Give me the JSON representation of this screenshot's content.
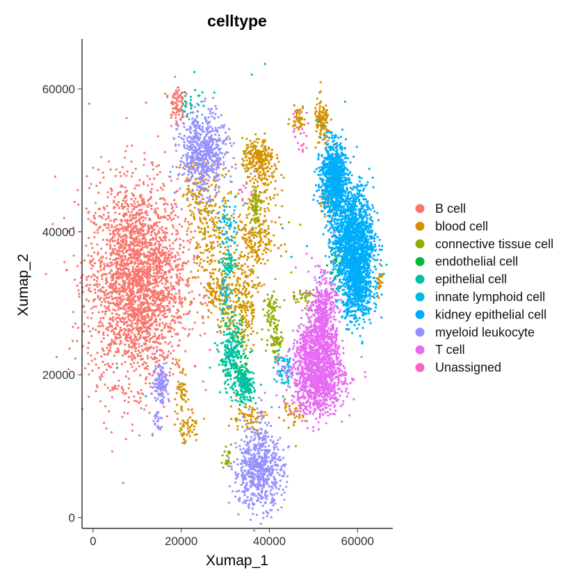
{
  "chart_data": {
    "type": "scatter",
    "title": "celltype",
    "xlabel": "Xumap_1",
    "ylabel": "Xumap_2",
    "xlim": [
      -2500,
      68000
    ],
    "ylim": [
      -1500,
      67000
    ],
    "x_ticks": [
      0,
      20000,
      40000,
      60000
    ],
    "x_tick_labels": [
      "0",
      "20000",
      "40000",
      "60000"
    ],
    "y_ticks": [
      0,
      20000,
      40000,
      60000
    ],
    "y_tick_labels": [
      "0",
      "20000",
      "40000",
      "60000"
    ],
    "grid": false,
    "legend_position": "right",
    "series": [
      {
        "name": "B cell",
        "color": "#F8766D",
        "clusters": [
          [
            10000,
            33000,
            5500,
            7000,
            2600
          ],
          [
            19000,
            58000,
            900,
            1500,
            80
          ]
        ],
        "points": [
          [
            3500,
            41000
          ],
          [
            1500,
            30500
          ],
          [
            15000,
            22000
          ],
          [
            20000,
            30000
          ]
        ]
      },
      {
        "name": "blood cell",
        "color": "#D39200",
        "clusters": [
          [
            37500,
            50500,
            1800,
            1200,
            200
          ],
          [
            52000,
            55000,
            900,
            1800,
            120
          ],
          [
            46500,
            56000,
            800,
            800,
            50
          ],
          [
            37000,
            39500,
            2500,
            3000,
            250
          ],
          [
            34000,
            30000,
            1800,
            3500,
            200
          ],
          [
            27000,
            39000,
            2500,
            5000,
            250
          ],
          [
            24000,
            46000,
            2000,
            2500,
            100
          ],
          [
            28500,
            32000,
            1500,
            2000,
            90
          ],
          [
            39000,
            48000,
            1800,
            1500,
            80
          ],
          [
            35000,
            14000,
            2000,
            1000,
            70
          ],
          [
            21500,
            12500,
            1500,
            1000,
            50
          ],
          [
            20000,
            17000,
            800,
            1800,
            50
          ],
          [
            45000,
            14500,
            1500,
            800,
            35
          ],
          [
            53000,
            44000,
            1000,
            1000,
            30
          ],
          [
            65000,
            33000,
            400,
            1200,
            25
          ]
        ],
        "points": [
          [
            30000,
            44000
          ],
          [
            31000,
            53000
          ],
          [
            47000,
            41000
          ],
          [
            33000,
            20000
          ]
        ]
      },
      {
        "name": "connective tissue cell",
        "color": "#93AA00",
        "clusters": [
          [
            37000,
            43500,
            500,
            1200,
            60
          ],
          [
            40500,
            29000,
            900,
            1500,
            60
          ],
          [
            41500,
            25000,
            900,
            1500,
            60
          ],
          [
            48000,
            31000,
            1500,
            500,
            35
          ],
          [
            30500,
            8500,
            600,
            1000,
            25
          ],
          [
            34000,
            26000,
            800,
            1500,
            40
          ],
          [
            30000,
            28500,
            500,
            1500,
            20
          ]
        ],
        "points": [
          [
            34500,
            21000
          ],
          [
            46000,
            10000
          ],
          [
            49000,
            29000
          ]
        ]
      },
      {
        "name": "endothelial cell",
        "color": "#00BA38",
        "clusters": [
          [
            55500,
            35000,
            1000,
            2000,
            40
          ],
          [
            34000,
            20000,
            900,
            1500,
            40
          ]
        ],
        "points": [
          [
            29000,
            22000
          ],
          [
            36000,
            18500
          ],
          [
            49000,
            28000
          ]
        ]
      },
      {
        "name": "epithelial cell",
        "color": "#00C19F",
        "clusters": [
          [
            31500,
            22500,
            1300,
            2500,
            260
          ],
          [
            34500,
            18500,
            1000,
            1200,
            160
          ],
          [
            31000,
            35500,
            800,
            800,
            50
          ],
          [
            22500,
            58500,
            1200,
            1500,
            30
          ]
        ],
        "points": [
          [
            25500,
            56000
          ],
          [
            27500,
            59500
          ],
          [
            32500,
            37500
          ],
          [
            29500,
            24500
          ]
        ]
      },
      {
        "name": "innate lymphoid cell",
        "color": "#00B9E3",
        "clusters": [
          [
            30500,
            40500,
            1200,
            1800,
            60
          ],
          [
            43500,
            20500,
            1200,
            1200,
            60
          ],
          [
            30000,
            31500,
            800,
            1500,
            35
          ]
        ],
        "points": [
          [
            24000,
            54500
          ],
          [
            34500,
            44000
          ],
          [
            26500,
            21000
          ],
          [
            12000,
            17000
          ],
          [
            5500,
            21000
          ]
        ]
      },
      {
        "name": "kidney epithelial cell",
        "color": "#00ADFA",
        "clusters": [
          [
            54500,
            47500,
            1400,
            2500,
            950
          ],
          [
            59000,
            39000,
            2300,
            3600,
            1500
          ],
          [
            60000,
            32500,
            1700,
            2600,
            650
          ]
        ],
        "points": [
          [
            48500,
            38000
          ],
          [
            45000,
            36500
          ],
          [
            43000,
            40500
          ],
          [
            50000,
            44500
          ],
          [
            39000,
            63500
          ],
          [
            36000,
            62000
          ]
        ]
      },
      {
        "name": "myeloid leukocyte",
        "color": "#9590FF",
        "clusters": [
          [
            25000,
            51000,
            2700,
            2800,
            600
          ],
          [
            37500,
            6500,
            2800,
            2500,
            600
          ],
          [
            15500,
            19000,
            900,
            1500,
            120
          ],
          [
            38500,
            12000,
            1500,
            2000,
            60
          ],
          [
            14500,
            13500,
            500,
            800,
            20
          ]
        ],
        "points": [
          [
            13500,
            11500
          ],
          [
            33000,
            2500
          ],
          [
            39000,
            2000
          ],
          [
            44000,
            5000
          ]
        ]
      },
      {
        "name": "T cell",
        "color": "#E76BF3",
        "clusters": [
          [
            51000,
            19500,
            3000,
            2500,
            1100
          ],
          [
            52000,
            28000,
            1500,
            2800,
            500
          ],
          [
            49000,
            24500,
            1500,
            1500,
            200
          ],
          [
            53500,
            24000,
            1200,
            1500,
            100
          ]
        ],
        "points": [
          [
            46000,
            35000
          ],
          [
            47000,
            31500
          ],
          [
            57000,
            19000
          ]
        ]
      },
      {
        "name": "Unassigned",
        "color": "#FF62BC",
        "clusters": [
          [
            47500,
            53500,
            1200,
            1500,
            20
          ],
          [
            34500,
            45500,
            800,
            800,
            10
          ]
        ],
        "points": [
          [
            45500,
            56500
          ],
          [
            23000,
            36500
          ],
          [
            18500,
            32000
          ],
          [
            26500,
            23500
          ]
        ]
      }
    ]
  }
}
